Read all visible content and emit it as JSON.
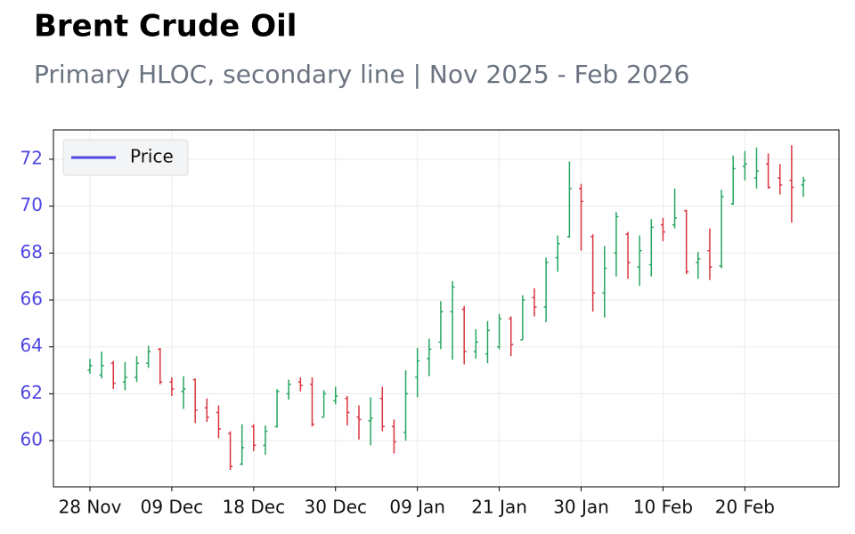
{
  "chart_data": {
    "type": "ohlc",
    "title": "Brent Crude Oil",
    "subtitle": "Primary HLOC, secondary line | Nov 2025 - Feb 2026",
    "categories": [
      "28 Nov",
      null,
      null,
      null,
      null,
      null,
      null,
      "09 Dec",
      null,
      null,
      null,
      null,
      null,
      null,
      "18 Dec",
      null,
      null,
      null,
      null,
      null,
      null,
      "30 Dec",
      null,
      null,
      null,
      null,
      null,
      null,
      "09 Jan",
      null,
      null,
      null,
      null,
      null,
      null,
      "21 Jan",
      null,
      null,
      null,
      null,
      null,
      null,
      "30 Jan",
      null,
      null,
      null,
      null,
      null,
      null,
      "10 Feb",
      null,
      null,
      null,
      null,
      null,
      null,
      "20 Feb",
      null,
      null,
      null,
      null,
      null
    ],
    "series": [
      {
        "name": "Price",
        "color": "#4f46e5",
        "up_color": "#27a55f",
        "down_color": "#d9363e",
        "open": [
          63.0,
          62.8,
          63.3,
          62.5,
          62.7,
          63.3,
          63.9,
          62.5,
          62.1,
          62.6,
          61.4,
          61.2,
          60.3,
          59.0,
          60.6,
          59.8,
          60.6,
          62.0,
          62.5,
          62.4,
          61.0,
          61.7,
          61.8,
          61.0,
          60.85,
          61.8,
          60.6,
          60.35,
          62.7,
          63.5,
          64.2,
          65.5,
          65.6,
          63.8,
          63.7,
          64.0,
          65.2,
          64.3,
          66.1,
          65.7,
          67.8,
          68.7,
          70.75,
          68.7,
          66.3,
          68.0,
          68.8,
          67.4,
          67.5,
          69.2,
          69.2,
          69.8,
          67.6,
          68.1,
          67.45,
          70.1,
          71.7,
          71.2,
          71.8,
          71.2,
          71.1,
          70.9
        ],
        "high": [
          63.49,
          63.8,
          63.4,
          63.35,
          63.6,
          64.05,
          63.95,
          62.7,
          62.75,
          62.65,
          61.8,
          61.5,
          60.4,
          60.7,
          60.7,
          60.65,
          62.2,
          62.6,
          62.7,
          62.7,
          62.15,
          62.3,
          61.9,
          61.5,
          61.85,
          62.3,
          60.9,
          63.0,
          63.95,
          64.35,
          65.95,
          66.8,
          65.75,
          64.75,
          65.1,
          65.4,
          65.3,
          66.2,
          66.5,
          67.8,
          68.75,
          71.9,
          70.95,
          68.8,
          68.3,
          69.75,
          68.9,
          68.75,
          69.45,
          69.5,
          70.75,
          69.85,
          68.05,
          69.05,
          70.7,
          72.15,
          72.35,
          72.5,
          72.25,
          71.8,
          72.6,
          71.25
        ],
        "low": [
          62.85,
          62.65,
          62.2,
          62.15,
          62.5,
          63.1,
          62.4,
          61.9,
          61.35,
          60.75,
          60.8,
          60.1,
          58.75,
          58.95,
          59.55,
          59.4,
          60.55,
          61.75,
          62.1,
          60.6,
          61.0,
          61.55,
          60.65,
          60.05,
          59.8,
          60.4,
          59.45,
          60.0,
          61.85,
          62.75,
          63.9,
          63.45,
          63.25,
          63.5,
          63.3,
          63.9,
          63.6,
          64.3,
          65.3,
          65.05,
          67.2,
          68.65,
          68.1,
          65.5,
          65.25,
          67.0,
          66.9,
          66.6,
          67.0,
          68.5,
          69.05,
          67.1,
          66.9,
          66.85,
          67.35,
          70.05,
          71.1,
          70.75,
          70.75,
          70.5,
          69.3,
          70.4
        ],
        "close": [
          63.2,
          63.2,
          62.45,
          62.7,
          63.3,
          63.8,
          62.5,
          62.2,
          62.2,
          61.3,
          61.0,
          60.5,
          58.9,
          59.7,
          59.8,
          60.4,
          62.1,
          62.4,
          62.35,
          60.7,
          62.0,
          61.9,
          61.2,
          60.9,
          60.95,
          60.6,
          59.95,
          62.0,
          63.4,
          63.9,
          65.5,
          66.55,
          63.8,
          64.2,
          64.7,
          65.2,
          64.1,
          66.0,
          65.7,
          67.6,
          68.4,
          70.75,
          70.2,
          66.3,
          67.35,
          69.55,
          67.6,
          68.1,
          69.1,
          68.9,
          69.5,
          67.2,
          67.75,
          67.4,
          70.4,
          71.6,
          71.8,
          71.5,
          70.8,
          70.9,
          70.8,
          71.1
        ]
      }
    ],
    "ylim": [
      58.03,
      73.25
    ],
    "yticks": [
      60,
      62,
      64,
      66,
      68,
      70,
      72
    ],
    "grid": true,
    "legend": "upper left"
  }
}
